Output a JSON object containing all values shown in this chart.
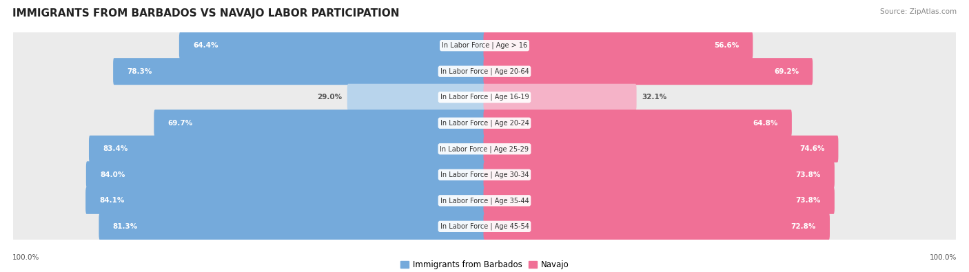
{
  "title": "IMMIGRANTS FROM BARBADOS VS NAVAJO LABOR PARTICIPATION",
  "source": "Source: ZipAtlas.com",
  "categories": [
    "In Labor Force | Age > 16",
    "In Labor Force | Age 20-64",
    "In Labor Force | Age 16-19",
    "In Labor Force | Age 20-24",
    "In Labor Force | Age 25-29",
    "In Labor Force | Age 30-34",
    "In Labor Force | Age 35-44",
    "In Labor Force | Age 45-54"
  ],
  "barbados_values": [
    64.4,
    78.3,
    29.0,
    69.7,
    83.4,
    84.0,
    84.1,
    81.3
  ],
  "navajo_values": [
    56.6,
    69.2,
    32.1,
    64.8,
    74.6,
    73.8,
    73.8,
    72.8
  ],
  "barbados_color": "#75AADB",
  "barbados_light_color": "#B8D4EC",
  "navajo_color": "#F07096",
  "navajo_light_color": "#F5B3C8",
  "row_bg_color": "#EBEBEB",
  "label_color_white": "#FFFFFF",
  "label_color_dark": "#555555",
  "max_value": 100.0,
  "small_threshold": 40,
  "title_fontsize": 11,
  "label_fontsize": 7.5,
  "category_fontsize": 7,
  "legend_fontsize": 8.5,
  "axis_label_fontsize": 7.5
}
